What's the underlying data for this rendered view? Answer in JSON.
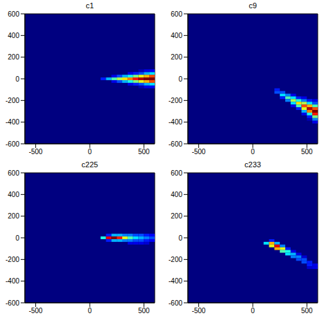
{
  "chart_data": [
    {
      "type": "heatmap",
      "title": "c1",
      "xlim": [
        -600,
        600
      ],
      "ylim": [
        -600,
        600
      ],
      "xticks": [
        -500,
        0,
        500
      ],
      "yticks": [
        -600,
        -400,
        -200,
        0,
        200,
        400,
        600
      ],
      "color_range": [
        0,
        1
      ],
      "cells": [
        [
          125,
          0,
          0.15
        ],
        [
          175,
          0,
          0.3
        ],
        [
          225,
          0,
          0.45
        ],
        [
          225,
          25,
          0.1
        ],
        [
          225,
          -25,
          0.1
        ],
        [
          275,
          0,
          0.55
        ],
        [
          275,
          25,
          0.2
        ],
        [
          275,
          -25,
          0.2
        ],
        [
          325,
          0,
          0.65
        ],
        [
          325,
          25,
          0.3
        ],
        [
          325,
          -25,
          0.3
        ],
        [
          375,
          0,
          0.75
        ],
        [
          375,
          25,
          0.4
        ],
        [
          375,
          -25,
          0.4
        ],
        [
          375,
          50,
          0.1
        ],
        [
          375,
          -50,
          0.1
        ],
        [
          425,
          0,
          0.85
        ],
        [
          425,
          25,
          0.5
        ],
        [
          425,
          -25,
          0.5
        ],
        [
          425,
          50,
          0.15
        ],
        [
          425,
          -50,
          0.15
        ],
        [
          475,
          0,
          0.95
        ],
        [
          475,
          25,
          0.6
        ],
        [
          475,
          -25,
          0.6
        ],
        [
          475,
          50,
          0.2
        ],
        [
          475,
          -50,
          0.2
        ],
        [
          475,
          75,
          0.05
        ],
        [
          475,
          -75,
          0.05
        ],
        [
          525,
          0,
          1.0
        ],
        [
          525,
          25,
          0.7
        ],
        [
          525,
          -25,
          0.7
        ],
        [
          525,
          50,
          0.3
        ],
        [
          525,
          -50,
          0.3
        ],
        [
          525,
          75,
          0.1
        ],
        [
          525,
          -75,
          0.1
        ],
        [
          575,
          0,
          1.0
        ],
        [
          575,
          25,
          0.8
        ],
        [
          575,
          -25,
          0.8
        ],
        [
          575,
          50,
          0.35
        ],
        [
          575,
          -50,
          0.35
        ],
        [
          575,
          75,
          0.12
        ],
        [
          575,
          -75,
          0.12
        ]
      ]
    },
    {
      "type": "heatmap",
      "title": "c9",
      "xlim": [
        -600,
        600
      ],
      "ylim": [
        -600,
        600
      ],
      "xticks": [
        -500,
        0,
        500
      ],
      "yticks": [
        -600,
        -400,
        -200,
        0,
        200,
        400,
        600
      ],
      "color_range": [
        0,
        1
      ],
      "cells": [
        [
          225,
          -100,
          0.15
        ],
        [
          225,
          -125,
          0.2
        ],
        [
          275,
          -125,
          0.2
        ],
        [
          275,
          -150,
          0.35
        ],
        [
          275,
          -175,
          0.15
        ],
        [
          325,
          -150,
          0.25
        ],
        [
          325,
          -175,
          0.45
        ],
        [
          325,
          -200,
          0.25
        ],
        [
          375,
          -150,
          0.1
        ],
        [
          375,
          -175,
          0.35
        ],
        [
          375,
          -200,
          0.55
        ],
        [
          375,
          -225,
          0.35
        ],
        [
          375,
          -250,
          0.1
        ],
        [
          425,
          -175,
          0.15
        ],
        [
          425,
          -200,
          0.4
        ],
        [
          425,
          -225,
          0.65
        ],
        [
          425,
          -250,
          0.45
        ],
        [
          425,
          -275,
          0.15
        ],
        [
          475,
          -175,
          0.1
        ],
        [
          475,
          -200,
          0.25
        ],
        [
          475,
          -225,
          0.55
        ],
        [
          475,
          -250,
          0.8
        ],
        [
          475,
          -275,
          0.6
        ],
        [
          475,
          -300,
          0.3
        ],
        [
          475,
          -325,
          0.1
        ],
        [
          525,
          -200,
          0.15
        ],
        [
          525,
          -225,
          0.35
        ],
        [
          525,
          -250,
          0.7
        ],
        [
          525,
          -275,
          0.95
        ],
        [
          525,
          -300,
          0.75
        ],
        [
          525,
          -325,
          0.4
        ],
        [
          525,
          -350,
          0.15
        ],
        [
          525,
          -375,
          0.05
        ],
        [
          575,
          -200,
          0.1
        ],
        [
          575,
          -225,
          0.2
        ],
        [
          575,
          -250,
          0.45
        ],
        [
          575,
          -275,
          0.8
        ],
        [
          575,
          -300,
          1.0
        ],
        [
          575,
          -325,
          0.85
        ],
        [
          575,
          -350,
          0.5
        ],
        [
          575,
          -375,
          0.25
        ],
        [
          575,
          -400,
          0.1
        ]
      ]
    },
    {
      "type": "heatmap",
      "title": "c225",
      "xlim": [
        -600,
        600
      ],
      "ylim": [
        -600,
        600
      ],
      "xticks": [
        -500,
        0,
        500
      ],
      "yticks": [
        -600,
        -400,
        -200,
        0,
        200,
        400,
        600
      ],
      "color_range": [
        0,
        1
      ],
      "cells": [
        [
          125,
          0,
          0.4
        ],
        [
          175,
          0,
          0.9
        ],
        [
          175,
          25,
          0.15
        ],
        [
          175,
          -25,
          0.15
        ],
        [
          225,
          0,
          1.0
        ],
        [
          225,
          25,
          0.3
        ],
        [
          225,
          -25,
          0.3
        ],
        [
          275,
          0,
          0.85
        ],
        [
          275,
          25,
          0.3
        ],
        [
          275,
          -25,
          0.3
        ],
        [
          325,
          0,
          0.6
        ],
        [
          325,
          25,
          0.25
        ],
        [
          325,
          -25,
          0.25
        ],
        [
          375,
          0,
          0.45
        ],
        [
          375,
          25,
          0.25
        ],
        [
          375,
          -25,
          0.25
        ],
        [
          375,
          -50,
          0.1
        ],
        [
          425,
          0,
          0.35
        ],
        [
          425,
          25,
          0.2
        ],
        [
          425,
          -25,
          0.2
        ],
        [
          425,
          -50,
          0.1
        ],
        [
          475,
          0,
          0.3
        ],
        [
          475,
          25,
          0.2
        ],
        [
          475,
          -25,
          0.2
        ],
        [
          475,
          -50,
          0.1
        ],
        [
          525,
          0,
          0.25
        ],
        [
          525,
          25,
          0.15
        ],
        [
          525,
          -25,
          0.15
        ],
        [
          525,
          -50,
          0.08
        ],
        [
          575,
          0,
          0.2
        ],
        [
          575,
          25,
          0.12
        ],
        [
          575,
          -25,
          0.12
        ]
      ]
    },
    {
      "type": "heatmap",
      "title": "c233",
      "xlim": [
        -600,
        600
      ],
      "ylim": [
        -600,
        600
      ],
      "xticks": [
        -500,
        0,
        500
      ],
      "yticks": [
        -600,
        -400,
        -200,
        0,
        200,
        400,
        600
      ],
      "color_range": [
        0,
        1
      ],
      "cells": [
        [
          125,
          -50,
          0.35
        ],
        [
          175,
          -25,
          0.15
        ],
        [
          175,
          -50,
          0.7
        ],
        [
          175,
          -75,
          0.6
        ],
        [
          225,
          -50,
          0.3
        ],
        [
          225,
          -75,
          0.9
        ],
        [
          225,
          -100,
          0.7
        ],
        [
          275,
          -75,
          0.25
        ],
        [
          275,
          -100,
          0.6
        ],
        [
          275,
          -125,
          0.45
        ],
        [
          325,
          -100,
          0.15
        ],
        [
          325,
          -125,
          0.4
        ],
        [
          325,
          -150,
          0.35
        ],
        [
          375,
          -125,
          0.1
        ],
        [
          375,
          -150,
          0.3
        ],
        [
          375,
          -175,
          0.25
        ],
        [
          425,
          -150,
          0.1
        ],
        [
          425,
          -175,
          0.25
        ],
        [
          425,
          -200,
          0.2
        ],
        [
          475,
          -175,
          0.08
        ],
        [
          475,
          -200,
          0.2
        ],
        [
          475,
          -225,
          0.2
        ],
        [
          525,
          -225,
          0.15
        ],
        [
          525,
          -250,
          0.15
        ],
        [
          525,
          -275,
          0.08
        ],
        [
          575,
          -250,
          0.1
        ],
        [
          575,
          -275,
          0.1
        ]
      ]
    }
  ]
}
